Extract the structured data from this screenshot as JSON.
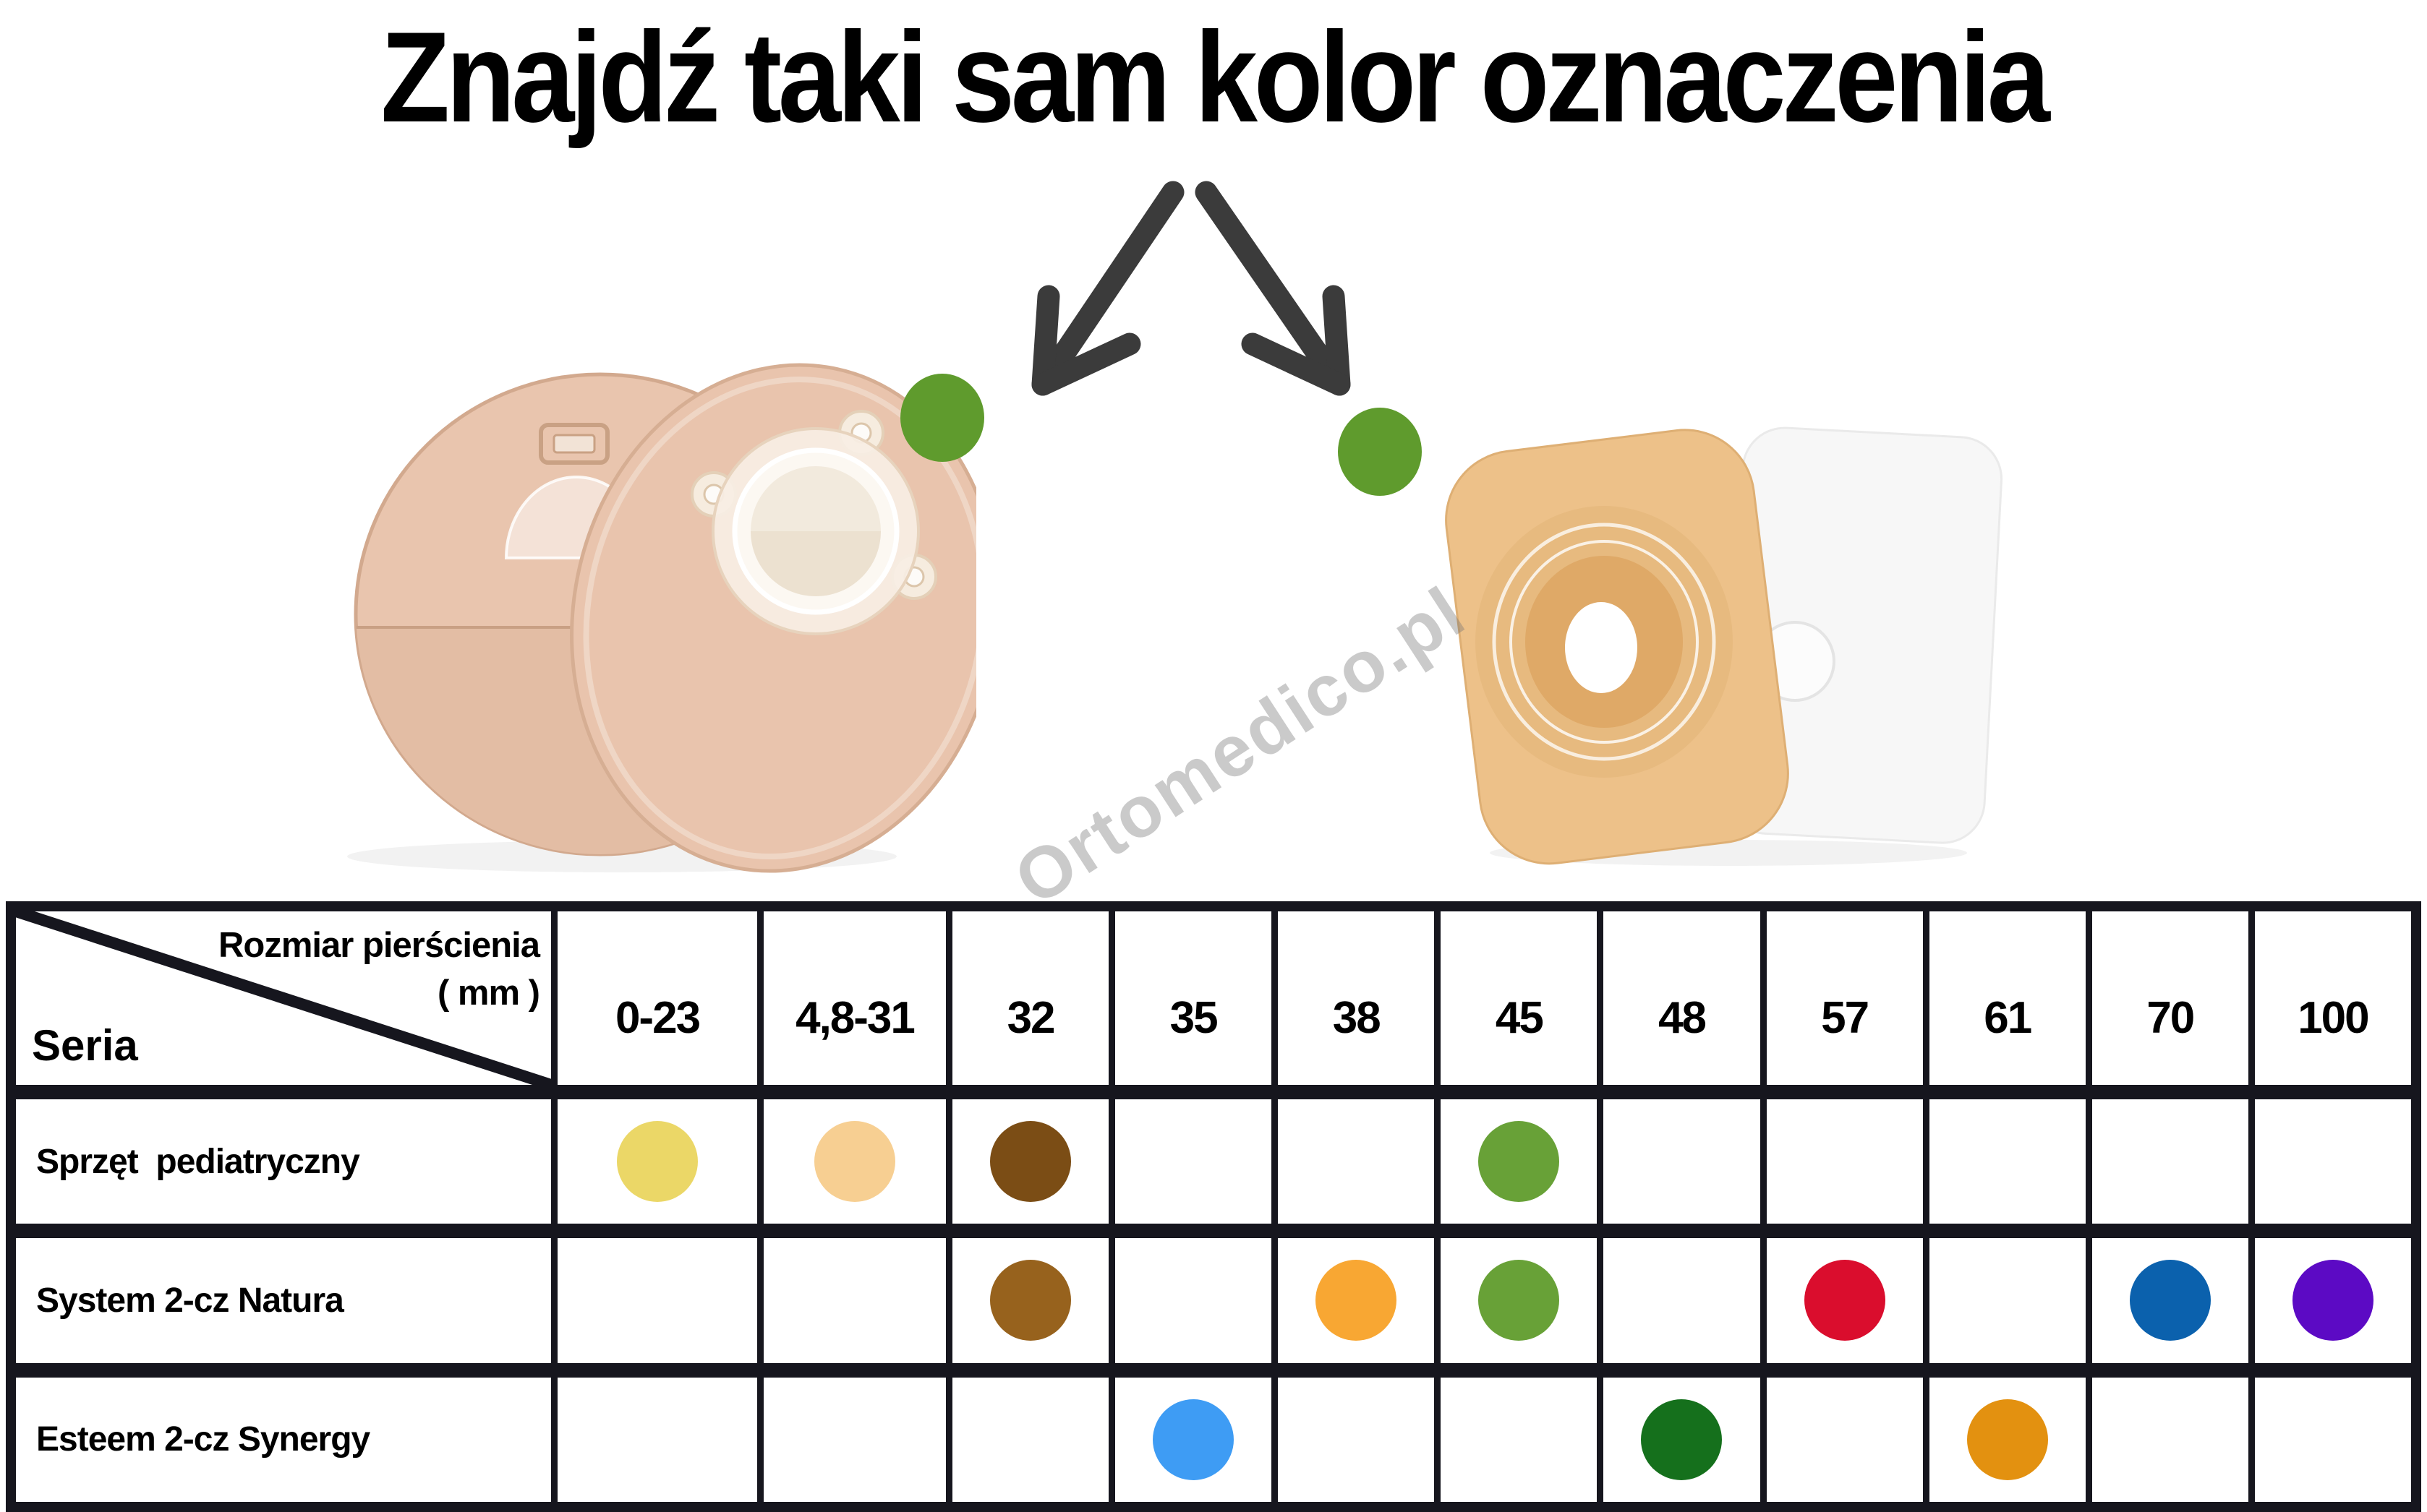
{
  "title": "Znajdź taki sam kolor oznaczenia",
  "watermark": "Ortomedico.pl",
  "arrows": {
    "color": "#3b3b3b"
  },
  "example_dots": {
    "left_color": "#5f9b2d",
    "right_color": "#5f9b2d"
  },
  "table": {
    "border_color": "#16161e",
    "corner": {
      "top_line1": "Rozmiar pierścienia",
      "top_line2": "( mm )",
      "bottom": "Seria"
    },
    "columns": [
      "0-23",
      "4,8-31",
      "32",
      "35",
      "38",
      "45",
      "48",
      "57",
      "61",
      "70",
      "100"
    ],
    "rows": [
      {
        "label": "Sprzęt  pediatryczny",
        "cells": [
          "#ebd767",
          "#f7cf92",
          "#7b4d15",
          null,
          null,
          "#68a137",
          null,
          null,
          null,
          null,
          null
        ]
      },
      {
        "label": "System 2-cz Natura",
        "cells": [
          null,
          null,
          "#97621d",
          null,
          "#f8a733",
          "#68a137",
          null,
          "#da0d2d",
          null,
          "#0b61ad",
          "#5c0ac4"
        ]
      },
      {
        "label": "Esteem 2-cz Synergy",
        "cells": [
          null,
          null,
          null,
          "#3e9cf4",
          null,
          null,
          "#15701c",
          null,
          "#e39110",
          null,
          null
        ]
      }
    ]
  }
}
